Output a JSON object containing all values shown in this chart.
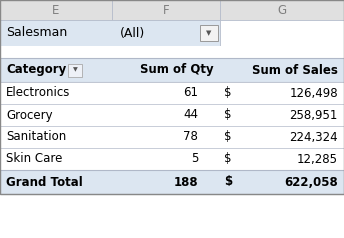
{
  "col_headers": [
    "E",
    "F",
    "G"
  ],
  "filter_label": "Salesman",
  "filter_value": "(All)",
  "table_headers": [
    "Category",
    "Sum of Qty",
    "Sum of Sales"
  ],
  "rows": [
    [
      "Electronics",
      "61",
      "$",
      "126,498"
    ],
    [
      "Grocery",
      "44",
      "$",
      "258,951"
    ],
    [
      "Sanitation",
      "78",
      "$",
      "224,324"
    ],
    [
      "Skin Care",
      "5",
      "$",
      "12,285"
    ]
  ],
  "grand_total": [
    "Grand Total",
    "188",
    "$",
    "622,058"
  ],
  "bg_color": "#ffffff",
  "header_bg": "#dce6f1",
  "filter_bg": "#dce6f1",
  "col_header_bg": "#e0e0e0",
  "grand_total_bg": "#dce6f1",
  "border_color": "#b0b8c8",
  "text_color": "#000000",
  "col_label_color": "#7f7f7f",
  "figwidth": 3.44,
  "figheight": 2.38,
  "dpi": 100
}
